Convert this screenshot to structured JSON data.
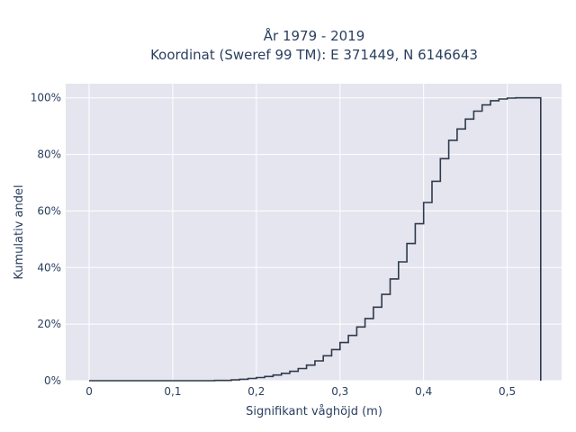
{
  "chart_data": {
    "type": "line",
    "title_line1": "År 1979 - 2019",
    "title_line2": "Koordinat (Sweref 99 TM): E 371449, N 6146643",
    "xlabel": "Signifikant våghöjd (m)",
    "ylabel": "Kumulativ andel",
    "xlim": [
      -0.028,
      0.565
    ],
    "ylim": [
      0,
      1.05
    ],
    "x_ticks": [
      0,
      0.1,
      0.2,
      0.3,
      0.4,
      0.5
    ],
    "x_tick_labels": [
      "0",
      "0,1",
      "0,2",
      "0,3",
      "0,4",
      "0,5"
    ],
    "y_ticks": [
      0,
      0.2,
      0.4,
      0.6,
      0.8,
      1.0
    ],
    "y_tick_labels": [
      "0%",
      "20%",
      "40%",
      "60%",
      "80%",
      "100%"
    ],
    "grid": true,
    "line_shape": "step",
    "colors": {
      "line": "#2e3a4a",
      "plot_bg": "#e5e5ef",
      "grid": "#ffffff"
    },
    "series": [
      {
        "x": [
          0,
          0.15,
          0.17,
          0.18,
          0.19,
          0.2,
          0.21,
          0.22,
          0.23,
          0.24,
          0.25,
          0.26,
          0.27,
          0.28,
          0.29,
          0.3,
          0.31,
          0.32,
          0.33,
          0.34,
          0.35,
          0.36,
          0.37,
          0.38,
          0.39,
          0.4,
          0.41,
          0.42,
          0.43,
          0.44,
          0.45,
          0.46,
          0.47,
          0.48,
          0.49,
          0.5,
          0.51,
          0.52,
          0.53,
          0.54,
          0.54
        ],
        "y": [
          0,
          0.001,
          0.003,
          0.005,
          0.008,
          0.011,
          0.015,
          0.02,
          0.026,
          0.033,
          0.043,
          0.055,
          0.07,
          0.088,
          0.11,
          0.135,
          0.16,
          0.19,
          0.22,
          0.26,
          0.305,
          0.36,
          0.42,
          0.485,
          0.555,
          0.63,
          0.705,
          0.785,
          0.85,
          0.89,
          0.925,
          0.953,
          0.975,
          0.99,
          0.996,
          0.999,
          1.0,
          1.0,
          1.0,
          1.0,
          0
        ]
      }
    ]
  }
}
